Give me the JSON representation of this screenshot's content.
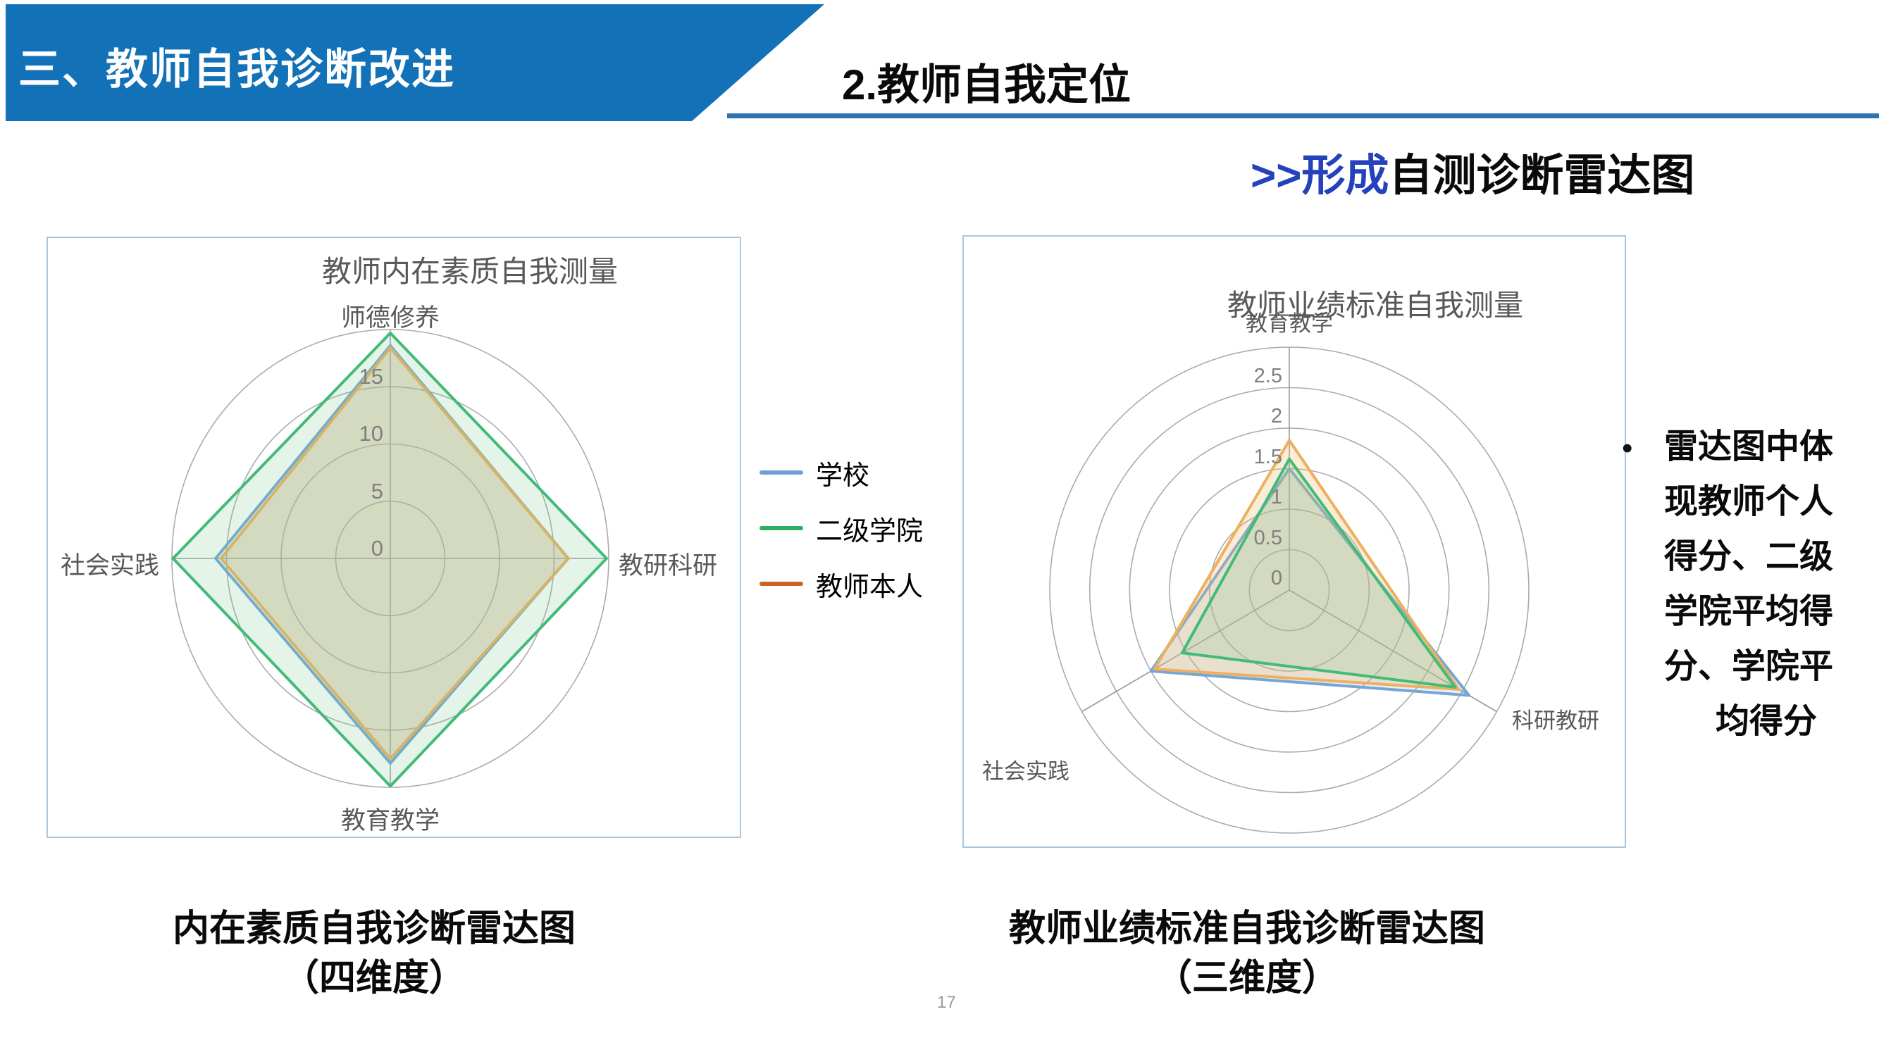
{
  "slide": {
    "banner_title": "三、教师自我诊断改进",
    "section_title": "2.教师自我定位",
    "subtitle": {
      "highlight": ">>形成",
      "rest": "自测诊断雷达图"
    },
    "page_number": "17",
    "colors": {
      "banner_blue": "#1371b8",
      "underline_blue": "#2e74b5",
      "subtitle_blue": "#2342bb",
      "panel_border": "#a9c7e3",
      "grid_gray": "#ababab",
      "label_gray": "#595959",
      "tick_gray": "#7f7f7f"
    }
  },
  "legend": {
    "items": [
      {
        "label": "学校",
        "color": "#6f9fd4"
      },
      {
        "label": "二级学院",
        "color": "#2fae63"
      },
      {
        "label": "教师本人",
        "color": "#c8661f"
      }
    ]
  },
  "side_note": {
    "bullet": "•",
    "lines": [
      "雷达图中体",
      "现教师个人",
      "得分、二级",
      "学院平均得",
      "分、学院平",
      "均得分"
    ]
  },
  "chart_data": [
    {
      "type": "radar",
      "title": "教师内在素质自我测量",
      "categories": [
        "师德修养",
        "教研科研",
        "教育教学",
        "社会实践"
      ],
      "max": 20,
      "ring_step": 5,
      "tick_values": [
        0,
        5,
        10,
        15
      ],
      "tick_labels": [
        "0",
        "5",
        "10",
        "15"
      ],
      "grid": "circular",
      "legend_position": "right-outside",
      "series": [
        {
          "name": "学校",
          "color": "#74a6d8",
          "fill": "rgba(125,160,195,0.18)",
          "values": [
            18.6,
            16.3,
            17.9,
            16.0
          ]
        },
        {
          "name": "二级学院",
          "color": "#41bb78",
          "fill": "rgba(125,200,140,0.20)",
          "values": [
            19.7,
            19.8,
            19.9,
            19.9
          ]
        },
        {
          "name": "教师本人",
          "color": "#ecb05f",
          "fill": "rgba(238,186,108,0.28)",
          "values": [
            18.4,
            16.3,
            17.5,
            15.5
          ]
        }
      ],
      "caption": {
        "line1": "内在素质自我诊断雷达图",
        "line2": "（四维度）"
      }
    },
    {
      "type": "radar",
      "title": "教师业绩标准自我测量",
      "categories": [
        "教育教学",
        "科研教研",
        "社会实践"
      ],
      "max": 3.0,
      "ring_step": 0.5,
      "tick_values": [
        0,
        0.5,
        1,
        1.5,
        2,
        2.5
      ],
      "tick_labels": [
        "0",
        "0.5",
        "1",
        "1.5",
        "2",
        "2.5"
      ],
      "grid": "circular",
      "series": [
        {
          "name": "学校",
          "color": "#74a6d8",
          "fill": "rgba(125,160,195,0.18)",
          "values": [
            1.5,
            2.6,
            2.0
          ]
        },
        {
          "name": "二级学院",
          "color": "#41bb78",
          "fill": "rgba(125,200,140,0.20)",
          "values": [
            1.62,
            2.4,
            1.55
          ]
        },
        {
          "name": "教师本人",
          "color": "#ecb05f",
          "fill": "rgba(238,186,108,0.28)",
          "values": [
            1.85,
            2.45,
            1.95
          ]
        }
      ],
      "caption": {
        "line1": "教师业绩标准自我诊断雷达图",
        "line2": "（三维度）"
      }
    }
  ]
}
